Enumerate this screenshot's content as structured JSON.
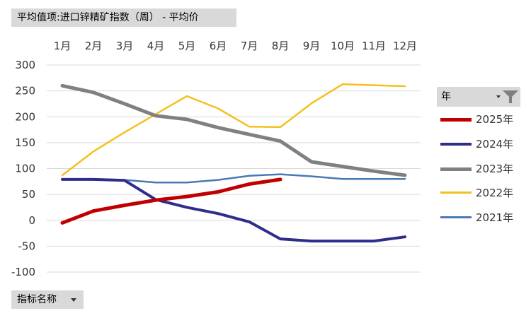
{
  "pivot": {
    "title_button": "平均值项:进口锌精矿指数（周） - 平均价",
    "field_button": "指标名称",
    "legend_header": "年"
  },
  "chart_data": {
    "type": "line",
    "categories": [
      "1月",
      "2月",
      "3月",
      "4月",
      "5月",
      "6月",
      "7月",
      "8月",
      "9月",
      "10月",
      "11月",
      "12月"
    ],
    "ylim": [
      -100,
      300
    ],
    "yticks": [
      -100,
      -50,
      0,
      50,
      100,
      150,
      200,
      250,
      300
    ],
    "grid": true,
    "legend_position": "right",
    "series": [
      {
        "name": "2025年",
        "color": "#c00000",
        "width": 5,
        "values": [
          -5,
          18,
          29,
          39,
          46,
          55,
          70,
          79,
          null,
          null,
          null,
          null
        ]
      },
      {
        "name": "2024年",
        "color": "#2e2e8a",
        "width": 4,
        "values": [
          79,
          79,
          77,
          40,
          25,
          13,
          -3,
          -36,
          -40,
          -40,
          -40,
          -32
        ]
      },
      {
        "name": "2023年",
        "color": "#808080",
        "width": 5,
        "values": [
          260,
          247,
          225,
          202,
          195,
          179,
          166,
          153,
          113,
          104,
          95,
          87
        ]
      },
      {
        "name": "2022年",
        "color": "#f5c01f",
        "width": 2.5,
        "values": [
          87,
          133,
          170,
          205,
          240,
          216,
          181,
          180,
          226,
          263,
          261,
          259
        ]
      },
      {
        "name": "2021年",
        "color": "#4a78b5",
        "width": 2.5,
        "values": [
          80,
          80,
          78,
          73,
          73,
          78,
          86,
          89,
          85,
          80,
          80,
          80
        ]
      }
    ]
  }
}
